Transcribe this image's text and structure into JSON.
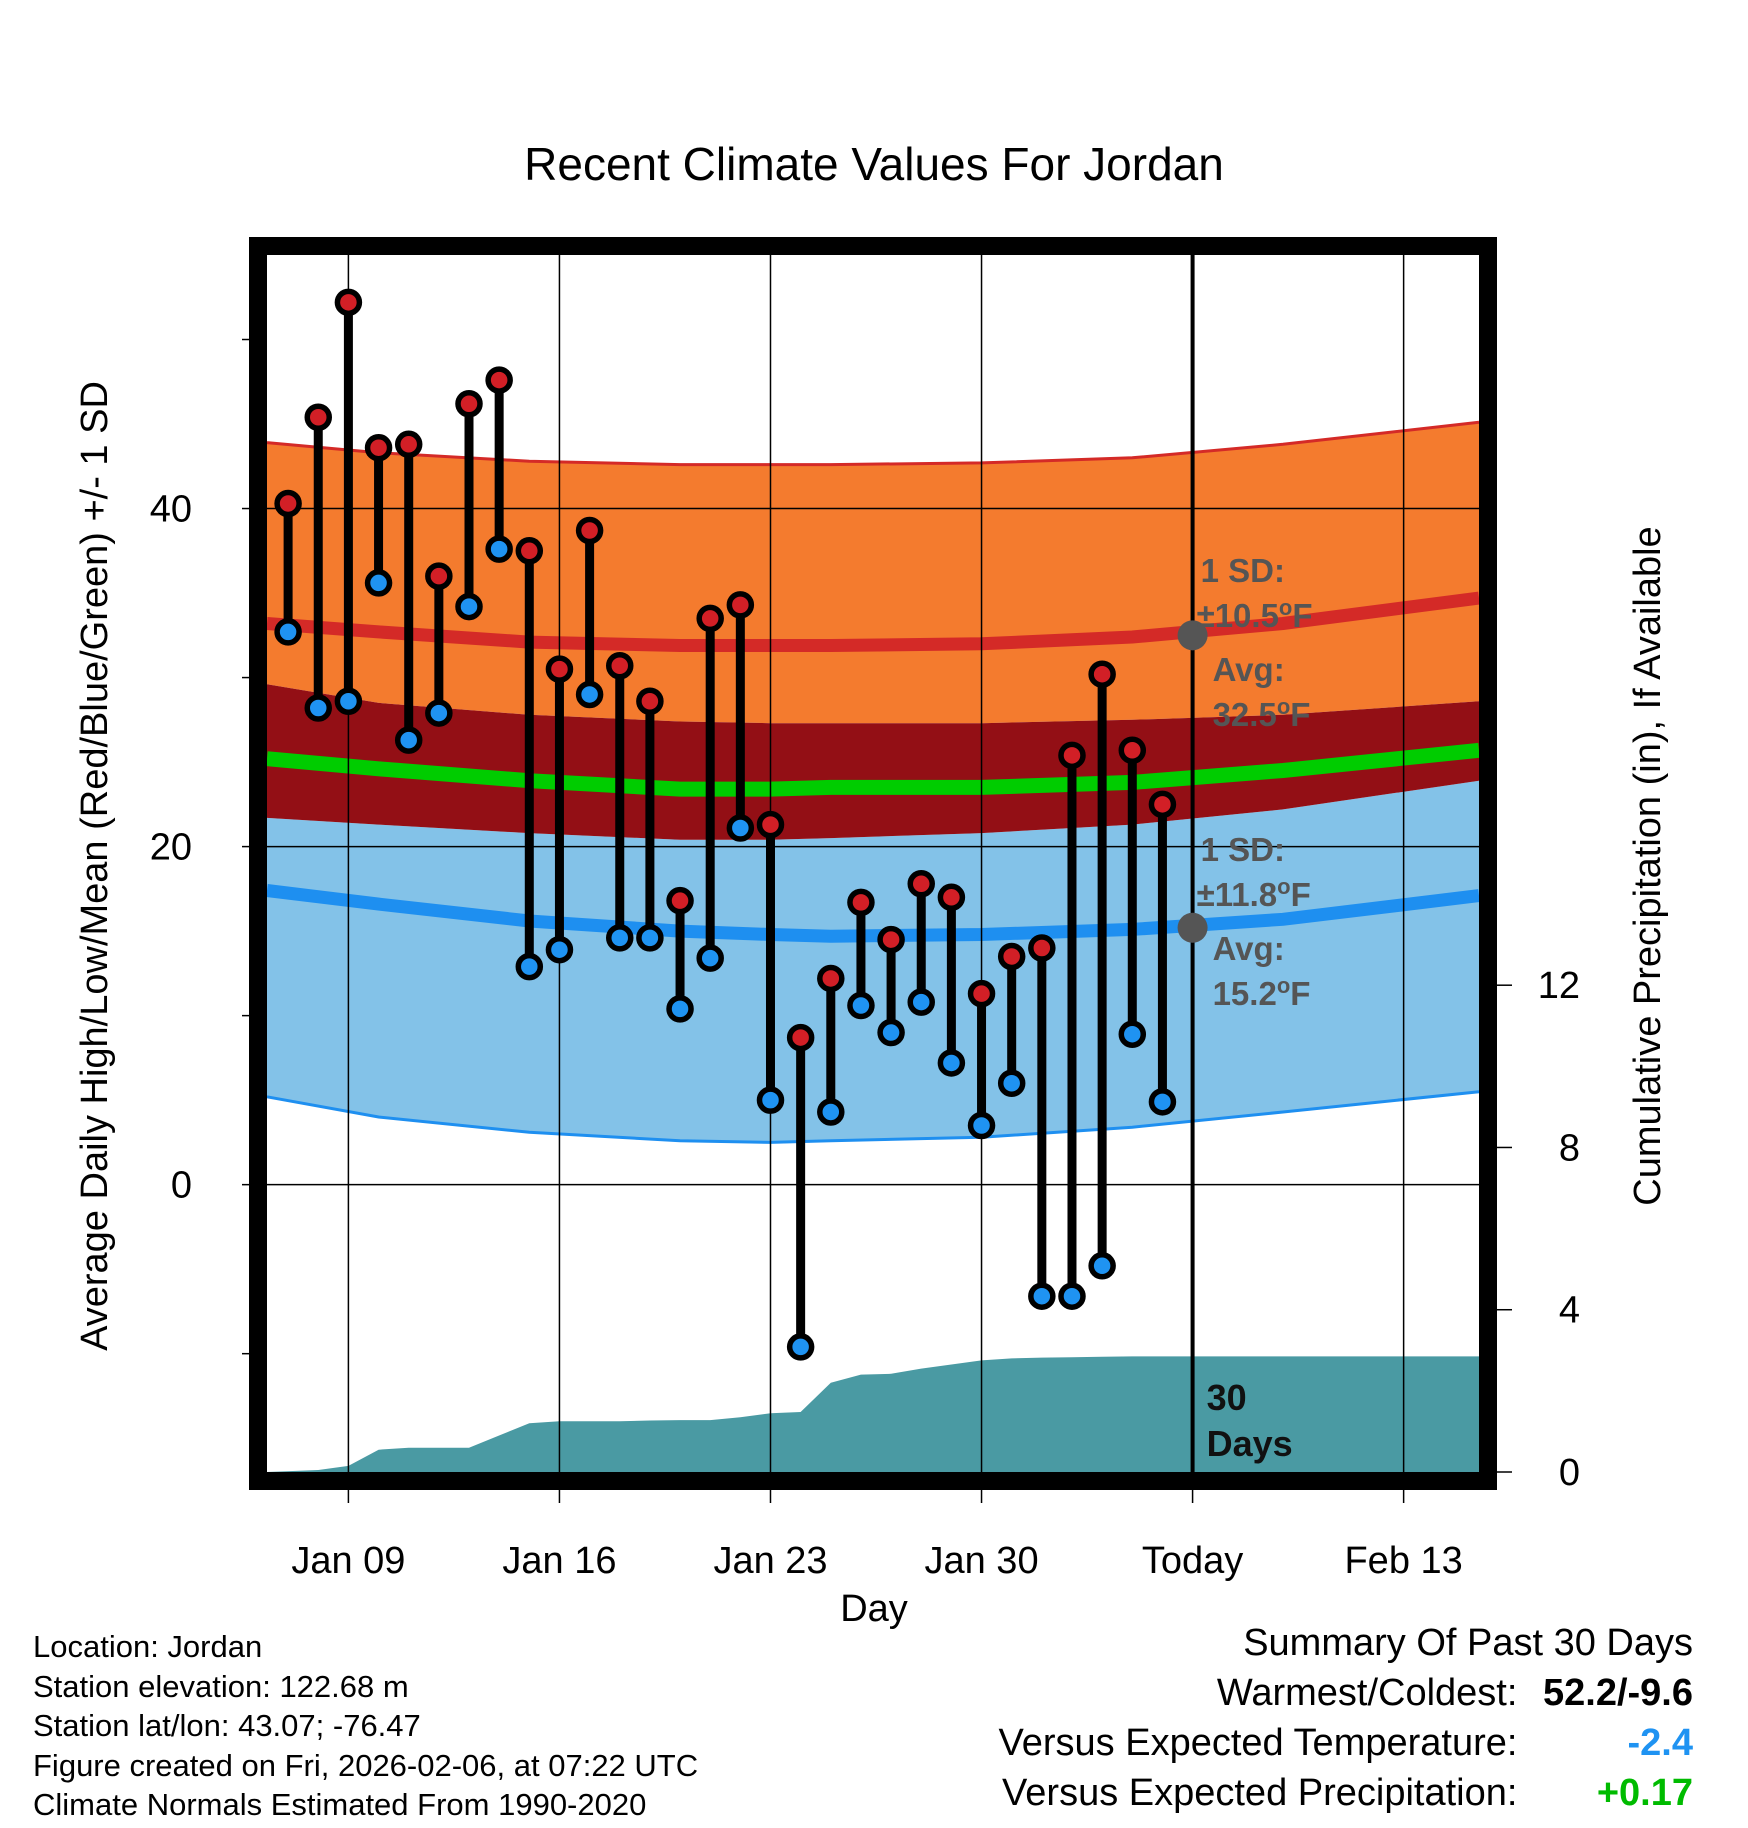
{
  "chart_data": {
    "type": "climate-range",
    "title": "Recent Climate Values For Jordan",
    "xlabel": "Day",
    "ylabel_left": "Average Daily High/Low/Mean (Red/Blue/Green) +/- 1 SD",
    "ylabel_right": "Cumulative Precipitation (in), If Available",
    "ylim": [
      -17,
      55
    ],
    "y_ticks": [
      0,
      20,
      40
    ],
    "y2lim": [
      0,
      30
    ],
    "y2_ticks": [
      0,
      4,
      8,
      12
    ],
    "x_ticks": [
      {
        "day": 9,
        "label": "Jan 09"
      },
      {
        "day": 16,
        "label": "Jan 16"
      },
      {
        "day": 23,
        "label": "Jan 23"
      },
      {
        "day": 30,
        "label": "Jan 30"
      },
      {
        "day": 37,
        "label": "Today"
      },
      {
        "day": 44,
        "label": "Feb 13"
      }
    ],
    "x_range": [
      6.3,
      46.5
    ],
    "today_day": 37,
    "window_label": [
      "30",
      "Days"
    ],
    "normals": {
      "days": [
        6.3,
        10,
        15,
        20,
        23,
        25,
        30,
        35,
        40,
        46.5
      ],
      "high_avg": [
        33.2,
        32.7,
        32.1,
        31.9,
        31.9,
        31.9,
        32.0,
        32.4,
        33.2,
        34.7
      ],
      "high_plus_sd": [
        43.9,
        43.3,
        42.8,
        42.6,
        42.6,
        42.6,
        42.7,
        43.0,
        43.8,
        45.1
      ],
      "high_minus_sd": [
        29.6,
        28.5,
        27.8,
        27.4,
        27.3,
        27.3,
        27.3,
        27.5,
        27.8,
        28.6
      ],
      "mean_avg": [
        25.2,
        24.6,
        23.9,
        23.4,
        23.4,
        23.5,
        23.5,
        23.8,
        24.5,
        25.7
      ],
      "low_avg": [
        17.4,
        16.6,
        15.6,
        15.0,
        14.8,
        14.7,
        14.8,
        15.1,
        15.7,
        17.1
      ],
      "low_plus_sd": [
        21.7,
        21.3,
        20.8,
        20.4,
        20.4,
        20.5,
        20.8,
        21.3,
        22.2,
        23.9
      ],
      "low_minus_sd": [
        5.2,
        4.0,
        3.1,
        2.6,
        2.5,
        2.6,
        2.8,
        3.4,
        4.3,
        5.5
      ],
      "high_colors": {
        "band": "#f47b2e",
        "line": "#d42a27"
      },
      "mean_color": "#00cc00",
      "low_colors": {
        "band": "#83c2e8",
        "line": "#1e8ff0"
      },
      "overlap_color": "#930f15"
    },
    "series": [
      {
        "name": "High",
        "color": "#d21f26",
        "values": [
          40.3,
          45.4,
          52.2,
          43.6,
          43.8,
          36.0,
          46.2,
          47.6,
          37.5,
          30.5,
          38.7,
          30.7,
          28.6,
          16.8,
          33.5,
          34.3,
          21.3,
          8.7,
          12.2,
          16.7,
          14.5,
          17.8,
          17.0,
          11.3,
          13.5,
          14.0,
          25.4,
          30.2,
          25.7,
          22.5
        ]
      },
      {
        "name": "Low",
        "color": "#1f93f2",
        "values": [
          32.7,
          28.2,
          28.6,
          35.6,
          26.3,
          27.9,
          34.2,
          37.6,
          12.9,
          13.9,
          29.0,
          14.6,
          14.6,
          10.4,
          13.4,
          21.1,
          5.0,
          -9.6,
          4.3,
          10.6,
          9.0,
          10.8,
          7.2,
          3.5,
          6.0,
          -6.6,
          -6.6,
          -4.8,
          8.9,
          4.9
        ]
      }
    ],
    "observation_days": [
      7,
      8,
      9,
      10,
      11,
      12,
      13,
      14,
      15,
      16,
      17,
      18,
      19,
      20,
      21,
      22,
      23,
      24,
      25,
      26,
      27,
      28,
      29,
      30,
      31,
      32,
      33,
      34,
      35,
      36
    ],
    "precipitation": {
      "color": "#4a9aa3",
      "days": [
        6.3,
        8.0,
        9.0,
        10.0,
        11.0,
        12.0,
        13.0,
        14.0,
        15.0,
        16.0,
        17.0,
        18.0,
        19.0,
        20.0,
        21.0,
        22.0,
        23.0,
        24.0,
        25.0,
        26.0,
        27.0,
        28.0,
        29.0,
        30.0,
        31.0,
        32.0,
        33.0,
        34.0,
        35.0,
        36.0,
        37.0,
        46.5
      ],
      "cumulative": [
        0.0,
        0.05,
        0.15,
        0.55,
        0.6,
        0.6,
        0.6,
        0.9,
        1.2,
        1.25,
        1.25,
        1.25,
        1.27,
        1.28,
        1.28,
        1.35,
        1.45,
        1.48,
        2.2,
        2.4,
        2.42,
        2.55,
        2.65,
        2.75,
        2.8,
        2.82,
        2.83,
        2.84,
        2.85,
        2.85,
        2.85,
        2.85
      ]
    },
    "annotations": {
      "high": {
        "sd_label": "1 SD:",
        "sd_value": "±10.5",
        "avg_label": "Avg:",
        "avg_value": "32.5",
        "unit": "F",
        "degree": "o",
        "avg_temp": 32.5
      },
      "low": {
        "sd_label": "1 SD:",
        "sd_value": "±11.8",
        "avg_label": "Avg:",
        "avg_value": "15.2",
        "unit": "F",
        "degree": "o",
        "avg_temp": 15.2
      },
      "text_color": "#555555"
    }
  },
  "station_info": {
    "location": "Location: Jordan",
    "elevation": "Station elevation: 122.68 m",
    "latlon": "Station lat/lon: 43.07; -76.47",
    "created": "Figure created on Fri, 2026-02-06, at 07:22 UTC",
    "normals": "Climate Normals Estimated From 1990-2020"
  },
  "summary": {
    "title": "Summary Of Past 30 Days",
    "warmest_coldest_label": "Warmest/Coldest:",
    "warmest_coldest_value": "52.2/-9.6",
    "temp_label": "Versus Expected Temperature:",
    "temp_value": "-2.4",
    "temp_color": "#1f93f2",
    "precip_label": "Versus Expected Precipitation:",
    "precip_value": "+0.17",
    "precip_color": "#00bb00"
  }
}
